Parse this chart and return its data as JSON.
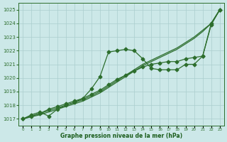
{
  "background_color": "#cce8e8",
  "grid_color": "#aacece",
  "line_color": "#2d6e2d",
  "marker_color": "#2d6e2d",
  "xlabel": "Graphe pression niveau de la mer (hPa)",
  "xlabel_color": "#1a5c1a",
  "ylim": [
    1016.5,
    1025.5
  ],
  "xlim": [
    -0.5,
    23.5
  ],
  "yticks": [
    1017,
    1018,
    1019,
    1020,
    1021,
    1022,
    1023,
    1024,
    1025
  ],
  "xticks": [
    0,
    1,
    2,
    3,
    4,
    5,
    6,
    7,
    8,
    9,
    10,
    11,
    12,
    13,
    14,
    15,
    16,
    17,
    18,
    19,
    20,
    21,
    22,
    23
  ],
  "series": [
    {
      "x": [
        0,
        1,
        2,
        3,
        4,
        5,
        6,
        7,
        8,
        9,
        10,
        11,
        12,
        13,
        14,
        15,
        16,
        17,
        18,
        19,
        20,
        21,
        22,
        23
      ],
      "y": [
        1017.0,
        1017.2,
        1017.4,
        1017.6,
        1017.8,
        1018.0,
        1018.2,
        1018.4,
        1018.7,
        1019.0,
        1019.4,
        1019.8,
        1020.2,
        1020.6,
        1021.0,
        1021.3,
        1021.6,
        1021.9,
        1022.2,
        1022.6,
        1023.0,
        1023.5,
        1024.0,
        1025.0
      ],
      "marker": null,
      "markersize": 0,
      "linewidth": 0.9
    },
    {
      "x": [
        0,
        1,
        2,
        3,
        4,
        5,
        6,
        7,
        8,
        9,
        10,
        11,
        12,
        13,
        14,
        15,
        16,
        17,
        18,
        19,
        20,
        21,
        22,
        23
      ],
      "y": [
        1017.0,
        1017.15,
        1017.3,
        1017.5,
        1017.7,
        1017.9,
        1018.1,
        1018.3,
        1018.6,
        1018.9,
        1019.3,
        1019.7,
        1020.1,
        1020.5,
        1020.9,
        1021.2,
        1021.5,
        1021.8,
        1022.1,
        1022.5,
        1022.9,
        1023.4,
        1024.0,
        1025.0
      ],
      "marker": null,
      "markersize": 0,
      "linewidth": 0.9
    },
    {
      "x": [
        0,
        1,
        2,
        3,
        4,
        5,
        6,
        7,
        8,
        9,
        10,
        11,
        12,
        13,
        14,
        15,
        16,
        17,
        18,
        19,
        20,
        21,
        22,
        23
      ],
      "y": [
        1017.0,
        1017.3,
        1017.5,
        1017.2,
        1017.7,
        1018.0,
        1018.2,
        1018.5,
        1019.2,
        1020.1,
        1021.9,
        1022.0,
        1022.1,
        1022.0,
        1021.4,
        1020.7,
        1020.6,
        1020.6,
        1020.6,
        1021.0,
        1021.0,
        1021.6,
        1023.9,
        1025.0
      ],
      "marker": "D",
      "markersize": 2.5,
      "linewidth": 0.9
    },
    {
      "x": [
        0,
        1,
        2,
        3,
        4,
        5,
        6,
        7,
        8,
        9,
        10,
        11,
        12,
        13,
        14,
        15,
        16,
        17,
        18,
        19,
        20,
        21,
        22,
        23
      ],
      "y": [
        1017.0,
        1017.2,
        1017.4,
        1017.7,
        1017.9,
        1018.1,
        1018.3,
        1018.5,
        1018.8,
        1019.1,
        1019.5,
        1019.9,
        1020.2,
        1020.5,
        1020.8,
        1021.0,
        1021.1,
        1021.2,
        1021.2,
        1021.4,
        1021.5,
        1021.6,
        1024.0,
        1025.0
      ],
      "marker": "D",
      "markersize": 2.5,
      "linewidth": 0.9
    }
  ]
}
